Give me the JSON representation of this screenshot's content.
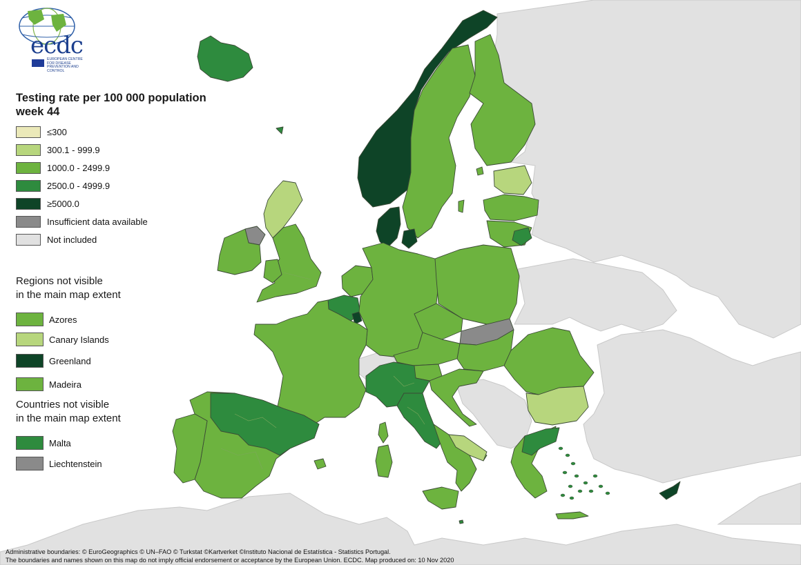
{
  "logo": {
    "text": "ecdc",
    "subtitle": "EUROPEAN CENTRE FOR DISEASE PREVENTION AND CONTROL"
  },
  "title": {
    "line1": "Testing rate per 100 000 population",
    "line2": "week 44"
  },
  "legend": [
    {
      "label": "≤300",
      "color": "#ebe9b9"
    },
    {
      "label": "300.1 - 999.9",
      "color": "#b7d67d"
    },
    {
      "label": "1000.0 - 2499.9",
      "color": "#6db33f"
    },
    {
      "label": "2500.0 - 4999.9",
      "color": "#2e8b3e"
    },
    {
      "label": "≥5000.0",
      "color": "#0e4427"
    },
    {
      "label": "Insufficient data available",
      "color": "#8a8a8a"
    },
    {
      "label": "Not included",
      "color": "#e1e1e1"
    }
  ],
  "regions_heading": {
    "line1": "Regions not visible",
    "line2": "in the main map extent"
  },
  "regions": [
    {
      "label": "Azores",
      "color": "#6db33f"
    },
    {
      "label": "Canary Islands",
      "color": "#b7d67d"
    },
    {
      "label": "Greenland",
      "color": "#0e4427"
    },
    {
      "label": "Madeira",
      "color": "#6db33f"
    }
  ],
  "countries_heading": {
    "line1": "Countries not visible",
    "line2": "in the main map extent"
  },
  "countries": [
    {
      "label": "Malta",
      "color": "#2e8b3e"
    },
    {
      "label": "Liechtenstein",
      "color": "#8a8a8a"
    }
  ],
  "footer": {
    "line1": "Administrative boundaries: © EuroGeographics © UN–FAO © Turkstat ©Kartverket ©Instituto Nacional de Estatística - Statistics Portugal.",
    "line2": "The boundaries and names shown on this map do not imply official endorsement or acceptance by the European Union. ECDC. Map produced on: 10 Nov 2020"
  },
  "map_colors": {
    "c1": "#6db33f",
    "c2": "#b7d67d",
    "c3": "#2e8b3e",
    "c4": "#0e4427",
    "gray": "#8a8a8a",
    "ni": "#e1e1e1"
  }
}
